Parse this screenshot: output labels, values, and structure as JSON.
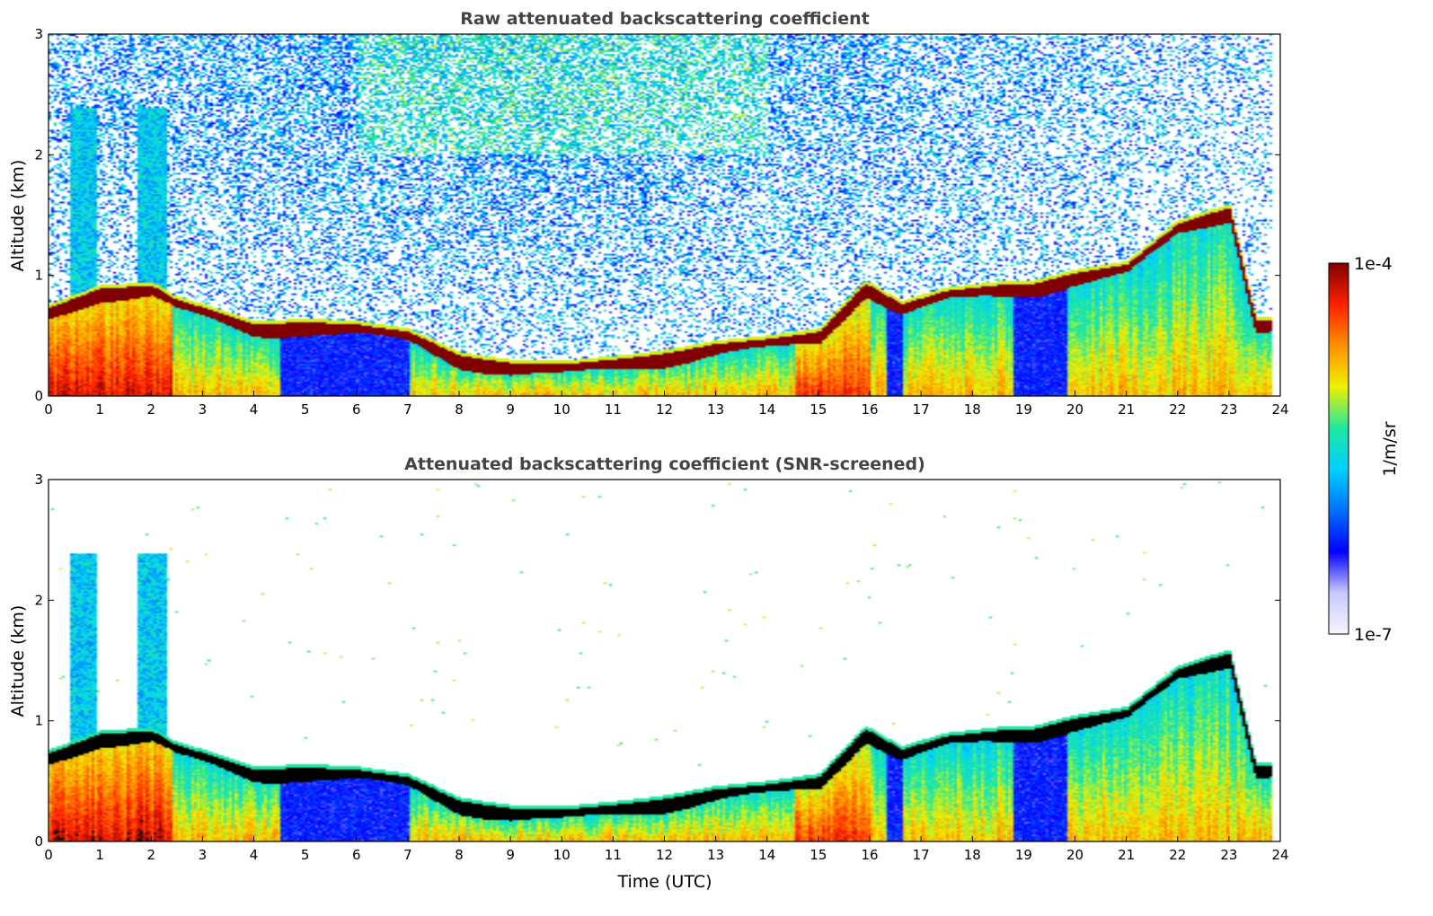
{
  "chart_data": [
    {
      "type": "heatmap",
      "title": "Raw attenuated backscattering coefficient",
      "xlabel": "",
      "ylabel": "Altitude (km)",
      "xlim": [
        0,
        24
      ],
      "ylim": [
        0,
        3
      ],
      "xticks": [
        "0",
        "1",
        "2",
        "3",
        "4",
        "5",
        "6",
        "7",
        "8",
        "9",
        "10",
        "11",
        "12",
        "13",
        "14",
        "15",
        "16",
        "17",
        "18",
        "19",
        "20",
        "21",
        "22",
        "23",
        "24"
      ],
      "yticks": [
        "0",
        "1",
        "2",
        "3"
      ],
      "colorbar": {
        "label": "1/m/sr",
        "min_label": "1e-7",
        "max_label": "1e-4",
        "scale": "log"
      },
      "layers": {
        "cloud_top_km": [
          [
            0,
            0.72
          ],
          [
            1,
            0.88
          ],
          [
            2,
            0.9
          ],
          [
            2.5,
            0.78
          ],
          [
            3,
            0.72
          ],
          [
            4,
            0.58
          ],
          [
            5,
            0.6
          ],
          [
            6,
            0.58
          ],
          [
            7,
            0.52
          ],
          [
            8,
            0.32
          ],
          [
            9,
            0.26
          ],
          [
            10,
            0.25
          ],
          [
            11,
            0.29
          ],
          [
            12,
            0.34
          ],
          [
            13,
            0.42
          ],
          [
            14,
            0.46
          ],
          [
            15,
            0.52
          ],
          [
            15.9,
            0.92
          ],
          [
            16.6,
            0.75
          ],
          [
            17.5,
            0.86
          ],
          [
            18.8,
            0.92
          ],
          [
            19.2,
            0.92
          ],
          [
            19.9,
            1.0
          ],
          [
            21,
            1.08
          ],
          [
            22,
            1.42
          ],
          [
            23,
            1.55
          ],
          [
            23.5,
            0.62
          ],
          [
            23.8,
            0.62
          ]
        ],
        "noise_floor_km": 0.3,
        "screening": false
      }
    },
    {
      "type": "heatmap",
      "title": "Attenuated backscattering coefficient (SNR-screened)",
      "xlabel": "Time (UTC)",
      "ylabel": "Altitude (km)",
      "xlim": [
        0,
        24
      ],
      "ylim": [
        0,
        3
      ],
      "xticks": [
        "0",
        "1",
        "2",
        "3",
        "4",
        "5",
        "6",
        "7",
        "8",
        "9",
        "10",
        "11",
        "12",
        "13",
        "14",
        "15",
        "16",
        "17",
        "18",
        "19",
        "20",
        "21",
        "22",
        "23",
        "24"
      ],
      "yticks": [
        "0",
        "1",
        "2",
        "3"
      ],
      "layers": {
        "cloud_top_km": [
          [
            0,
            0.72
          ],
          [
            1,
            0.88
          ],
          [
            2,
            0.9
          ],
          [
            2.5,
            0.78
          ],
          [
            3,
            0.72
          ],
          [
            4,
            0.58
          ],
          [
            5,
            0.6
          ],
          [
            6,
            0.58
          ],
          [
            7,
            0.52
          ],
          [
            8,
            0.32
          ],
          [
            9,
            0.26
          ],
          [
            10,
            0.25
          ],
          [
            11,
            0.29
          ],
          [
            12,
            0.34
          ],
          [
            13,
            0.42
          ],
          [
            14,
            0.46
          ],
          [
            15,
            0.52
          ],
          [
            15.9,
            0.92
          ],
          [
            16.6,
            0.75
          ],
          [
            17.5,
            0.86
          ],
          [
            18.8,
            0.92
          ],
          [
            19.2,
            0.92
          ],
          [
            19.9,
            1.0
          ],
          [
            21,
            1.08
          ],
          [
            22,
            1.42
          ],
          [
            23,
            1.55
          ],
          [
            23.5,
            0.62
          ],
          [
            23.8,
            0.62
          ]
        ],
        "screening": true,
        "saturated_color": "#000000"
      }
    }
  ],
  "colormap": [
    "#f5f5ff",
    "#c8c8ff",
    "#0000ff",
    "#0070ff",
    "#00d0ff",
    "#20e8a0",
    "#f0f000",
    "#ff9000",
    "#ff2000",
    "#800000"
  ]
}
